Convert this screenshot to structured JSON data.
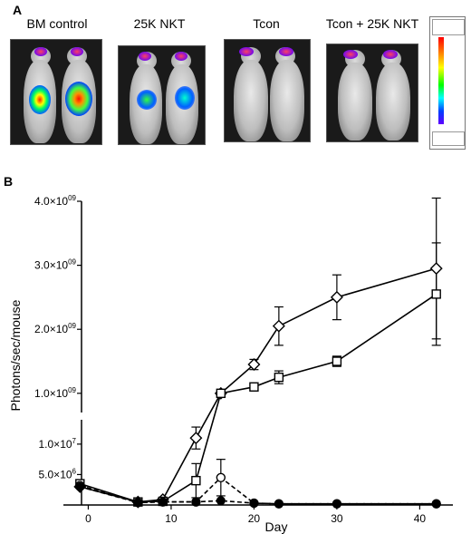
{
  "panel_a": {
    "letter": "A",
    "images": [
      {
        "label": "BM control"
      },
      {
        "label": "25K NKT"
      },
      {
        "label": "Tcon"
      },
      {
        "label": "Tcon + 25K NKT"
      }
    ]
  },
  "panel_b": {
    "letter": "B"
  },
  "chart_data": {
    "type": "line",
    "xlabel": "Day",
    "ylabel": "Photons/sec/mouse",
    "x_ticks": [
      0,
      10,
      20,
      30,
      40
    ],
    "y_ticks_upper": [
      "1.0×10",
      "2.0×10",
      "3.0×10",
      "4.0×10"
    ],
    "y_ticks_upper_exp": [
      "09",
      "09",
      "09",
      "09"
    ],
    "y_ticks_lower": [
      "5.0×10",
      "1.0×10"
    ],
    "y_ticks_lower_exp": [
      "6",
      "7"
    ],
    "axis_break": true,
    "series": [
      {
        "marker": "diamond",
        "line": "solid",
        "points": [
          [
            -1,
            3000000
          ],
          [
            6,
            500000
          ],
          [
            9,
            900000
          ],
          [
            13,
            11000000
          ],
          [
            16,
            1000000000
          ],
          [
            20,
            1450000000
          ],
          [
            23,
            2050000000
          ],
          [
            30,
            2500000000
          ],
          [
            42,
            2950000000
          ]
        ],
        "err": [
          0,
          0,
          0,
          1800000,
          0,
          80000000,
          300000000,
          350000000,
          1100000000
        ]
      },
      {
        "marker": "square",
        "line": "solid",
        "points": [
          [
            -1,
            3500000
          ],
          [
            6,
            500000
          ],
          [
            9,
            600000
          ],
          [
            13,
            4000000
          ],
          [
            16,
            1000000000
          ],
          [
            20,
            1100000000
          ],
          [
            23,
            1250000000
          ],
          [
            30,
            1500000000
          ],
          [
            42,
            2550000000
          ]
        ],
        "err": [
          0,
          0,
          0,
          2800000,
          0,
          30000000,
          100000000,
          80000000,
          800000000
        ]
      },
      {
        "marker": "open-circle",
        "line": "dashed",
        "points": [
          [
            -1,
            3200000
          ],
          [
            6,
            400000
          ],
          [
            9,
            500000
          ],
          [
            13,
            500000
          ],
          [
            16,
            4500000
          ],
          [
            20,
            300000
          ],
          [
            23,
            200000
          ],
          [
            30,
            200000
          ],
          [
            42,
            200000
          ]
        ],
        "err": [
          0,
          0,
          0,
          0,
          3000000,
          0,
          0,
          0,
          0
        ]
      },
      {
        "marker": "filled-circle",
        "line": "dashed",
        "points": [
          [
            -1,
            3000000
          ],
          [
            6,
            400000
          ],
          [
            9,
            500000
          ],
          [
            13,
            500000
          ],
          [
            16,
            700000
          ],
          [
            20,
            300000
          ],
          [
            23,
            200000
          ],
          [
            30,
            200000
          ],
          [
            42,
            200000
          ]
        ],
        "err": [
          0,
          0,
          0,
          0,
          0,
          0,
          0,
          0,
          0
        ]
      }
    ]
  }
}
